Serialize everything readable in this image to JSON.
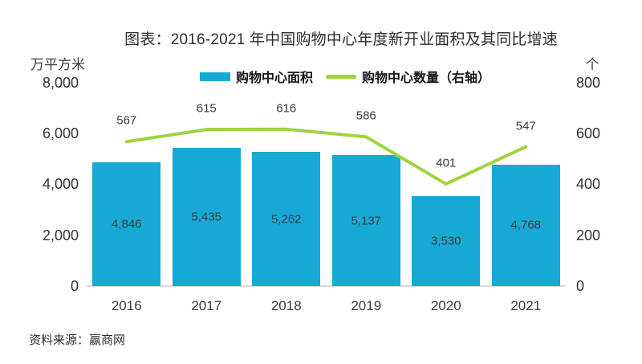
{
  "chart_data": {
    "type": "combo-bar-line",
    "title": "图表：2016-2021 年中国购物中心年度新开业面积及其同比增速",
    "categories": [
      "2016",
      "2017",
      "2018",
      "2019",
      "2020",
      "2021"
    ],
    "series": [
      {
        "name": "购物中心面积",
        "type": "bar",
        "axis": "left",
        "color": "#16a9d4",
        "values": [
          4846,
          5435,
          5262,
          5137,
          3530,
          4768
        ],
        "labels": [
          "4,846",
          "5,435",
          "5,262",
          "5,137",
          "3,530",
          "4,768"
        ]
      },
      {
        "name": "购物中心数量（右轴）",
        "type": "line",
        "axis": "right",
        "color": "#9ed43f",
        "values": [
          567,
          615,
          616,
          586,
          401,
          547
        ],
        "labels": [
          "567",
          "615",
          "616",
          "586",
          "401",
          "547"
        ]
      }
    ],
    "left_axis": {
      "unit": "万平方米",
      "min": 0,
      "max": 8000,
      "tick_values": [
        8000,
        6000,
        4000,
        2000,
        0
      ],
      "tick_labels": [
        "8,000",
        "6,000",
        "4,000",
        "2,000",
        "0"
      ]
    },
    "right_axis": {
      "unit": "个",
      "min": 0,
      "max": 800,
      "tick_values": [
        800,
        600,
        400,
        200,
        0
      ],
      "tick_labels": [
        "800",
        "600",
        "400",
        "200",
        "0"
      ]
    },
    "grid": false,
    "legend_position": "top-center"
  },
  "source": "资料来源：赢商网"
}
